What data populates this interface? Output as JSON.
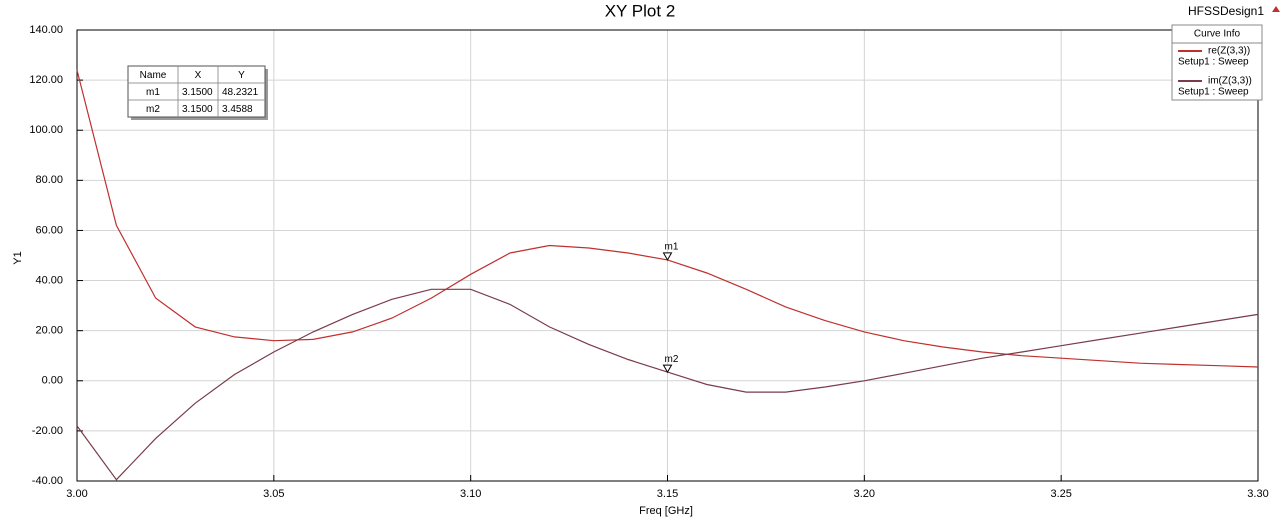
{
  "chart_data": {
    "type": "line",
    "title": "XY Plot 2",
    "design": "HFSSDesign1",
    "xlabel": "Freq [GHz]",
    "ylabel": "Y1",
    "legend_title": "Curve Info",
    "legend": "upper right",
    "grid": true,
    "x": [
      3.0,
      3.01,
      3.02,
      3.03,
      3.04,
      3.05,
      3.06,
      3.07,
      3.08,
      3.09,
      3.1,
      3.11,
      3.12,
      3.13,
      3.14,
      3.15,
      3.16,
      3.17,
      3.18,
      3.19,
      3.2,
      3.21,
      3.22,
      3.23,
      3.24,
      3.25,
      3.26,
      3.27,
      3.28,
      3.29,
      3.3
    ],
    "series": [
      {
        "name": "re(Z(3,3))",
        "setup": "Setup1 : Sweep",
        "color": "#c0302e",
        "values": [
          124,
          62,
          33,
          21.5,
          17.5,
          16,
          16.5,
          19.5,
          25,
          33,
          42.5,
          51,
          54,
          53,
          51,
          48.2321,
          43,
          36.5,
          29.5,
          24,
          19.5,
          16,
          13.5,
          11.5,
          10,
          9,
          8,
          7,
          6.5,
          6,
          5.5
        ]
      },
      {
        "name": "im(Z(3,3))",
        "setup": "Setup1 : Sweep",
        "color": "#7a3b4a",
        "values": [
          -18,
          -39.5,
          -23,
          -9,
          2.5,
          11.5,
          19.5,
          26.5,
          32.5,
          36.5,
          36.5,
          30.5,
          21.5,
          14.5,
          8.5,
          3.4588,
          -1.5,
          -4.5,
          -4.5,
          -2.5,
          0,
          3,
          6,
          9,
          11.5,
          14,
          16.5,
          19,
          21.5,
          24,
          26.5
        ]
      }
    ],
    "xlim": [
      3.0,
      3.3
    ],
    "xticks": [
      {
        "value": 3.0,
        "label": "3.00"
      },
      {
        "value": 3.05,
        "label": "3.05"
      },
      {
        "value": 3.1,
        "label": "3.10"
      },
      {
        "value": 3.15,
        "label": "3.15"
      },
      {
        "value": 3.2,
        "label": "3.20"
      },
      {
        "value": 3.25,
        "label": "3.25"
      },
      {
        "value": 3.3,
        "label": "3.30"
      }
    ],
    "ylim": [
      -40,
      140
    ],
    "yticks": [
      {
        "value": -40,
        "label": "-40.00"
      },
      {
        "value": -20,
        "label": "-20.00"
      },
      {
        "value": 0,
        "label": "0.00"
      },
      {
        "value": 20,
        "label": "20.00"
      },
      {
        "value": 40,
        "label": "40.00"
      },
      {
        "value": 60,
        "label": "60.00"
      },
      {
        "value": 80,
        "label": "80.00"
      },
      {
        "value": 100,
        "label": "100.00"
      },
      {
        "value": 120,
        "label": "120.00"
      },
      {
        "value": 140,
        "label": "140.00"
      }
    ],
    "marker_table_header": [
      "Name",
      "X",
      "Y"
    ],
    "markers": [
      {
        "name": "m1",
        "x": 3.15,
        "x_label": "3.1500",
        "y": 48.2321,
        "y_label": "48.2321"
      },
      {
        "name": "m2",
        "x": 3.15,
        "x_label": "3.1500",
        "y": 3.4588,
        "y_label": "3.4588"
      }
    ]
  }
}
